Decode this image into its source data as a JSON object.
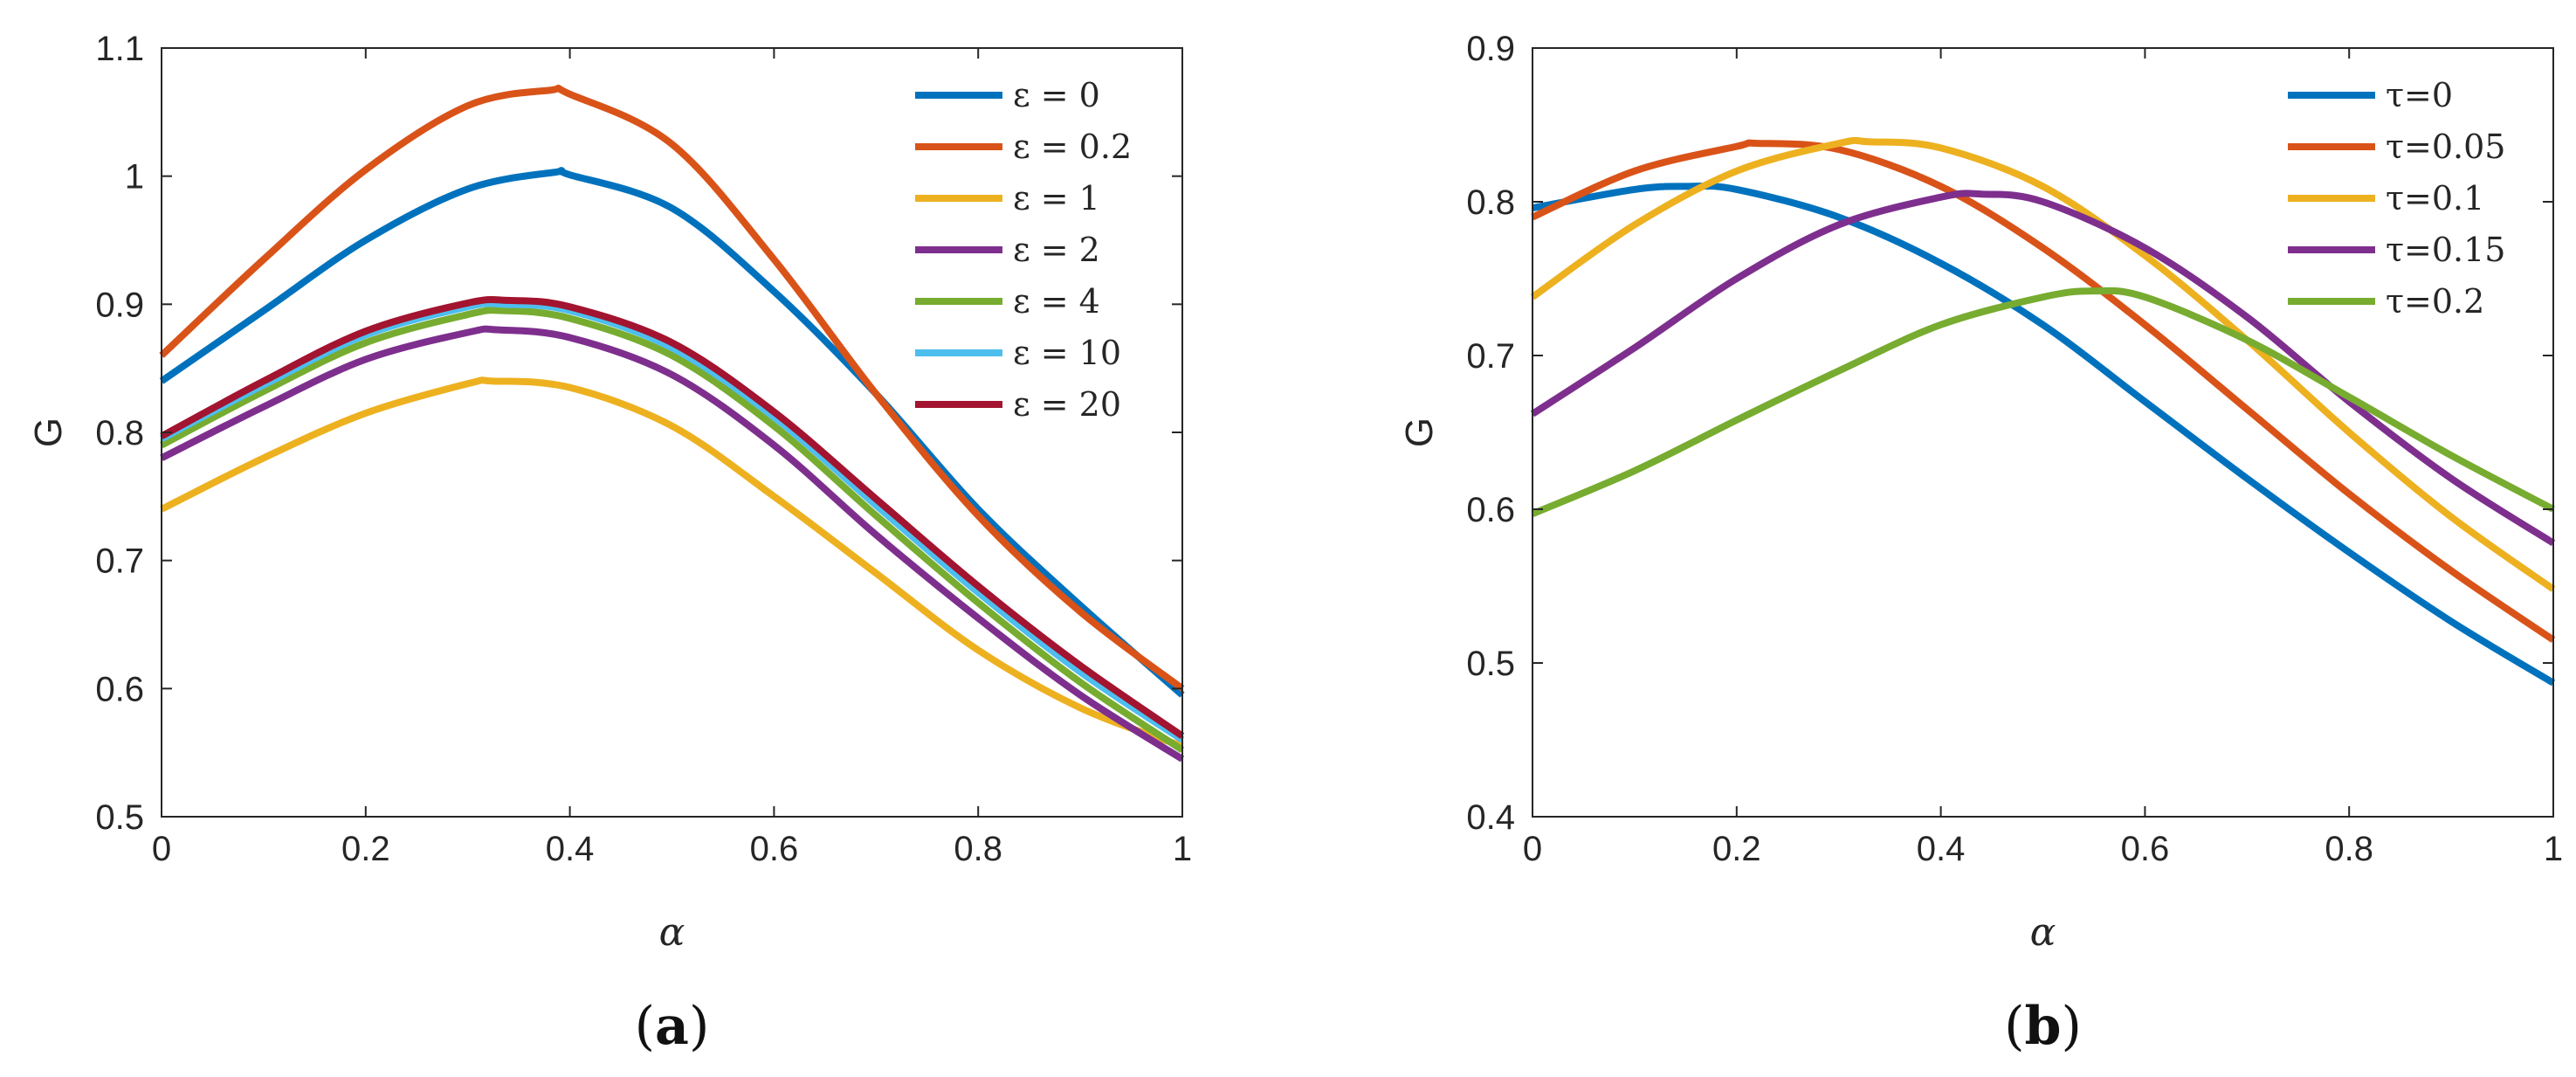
{
  "chart_data": [
    {
      "type": "line",
      "panel_label": "(a)",
      "panel_letter": "a",
      "xlabel": "α",
      "ylabel": "G",
      "xlim": [
        0,
        1
      ],
      "ylim": [
        0.5,
        1.1
      ],
      "x_ticks": [
        0,
        0.2,
        0.4,
        0.6,
        0.8,
        1
      ],
      "x_tick_labels": [
        "0",
        "0.2",
        "0.4",
        "0.6",
        "0.8",
        "1"
      ],
      "y_ticks": [
        0.5,
        0.6,
        0.7,
        0.8,
        0.9,
        1.0,
        1.1
      ],
      "y_tick_labels": [
        "0.5",
        "0.6",
        "0.7",
        "0.8",
        "0.9",
        "1",
        "1.1"
      ],
      "grid": false,
      "legend_position": "top-right",
      "x": [
        0,
        0.1,
        0.2,
        0.3,
        0.4,
        0.5,
        0.6,
        0.7,
        0.8,
        0.9,
        1.0
      ],
      "series": [
        {
          "name": "ε = 0",
          "color": "#0072BD",
          "peak": [
            0.385,
            1.003
          ],
          "values": [
            0.84,
            0.895,
            0.95,
            0.99,
            1.001,
            0.975,
            0.91,
            0.83,
            0.74,
            0.665,
            0.595
          ]
        },
        {
          "name": "ε = 0.2",
          "color": "#D95319",
          "peak": [
            0.38,
            1.067
          ],
          "values": [
            0.86,
            0.935,
            1.005,
            1.055,
            1.064,
            1.025,
            0.935,
            0.83,
            0.735,
            0.66,
            0.6
          ]
        },
        {
          "name": "ε = 1",
          "color": "#EDB120",
          "peak": [
            0.325,
            0.84
          ],
          "values": [
            0.74,
            0.78,
            0.815,
            0.838,
            0.835,
            0.805,
            0.75,
            0.69,
            0.63,
            0.585,
            0.555
          ]
        },
        {
          "name": "ε = 2",
          "color": "#7E2F8E",
          "peak": [
            0.33,
            0.88
          ],
          "values": [
            0.78,
            0.82,
            0.857,
            0.878,
            0.874,
            0.845,
            0.79,
            0.72,
            0.655,
            0.595,
            0.545
          ]
        },
        {
          "name": "ε = 4",
          "color": "#77AC30",
          "peak": [
            0.335,
            0.895
          ],
          "values": [
            0.79,
            0.832,
            0.87,
            0.892,
            0.889,
            0.86,
            0.805,
            0.735,
            0.667,
            0.605,
            0.552
          ]
        },
        {
          "name": "ε = 10",
          "color": "#4DBEEE",
          "peak": [
            0.335,
            0.9
          ],
          "values": [
            0.795,
            0.837,
            0.876,
            0.898,
            0.895,
            0.866,
            0.812,
            0.743,
            0.675,
            0.613,
            0.56
          ]
        },
        {
          "name": "ε = 20",
          "color": "#A2142F",
          "peak": [
            0.34,
            0.903
          ],
          "values": [
            0.797,
            0.84,
            0.879,
            0.901,
            0.898,
            0.87,
            0.816,
            0.748,
            0.68,
            0.618,
            0.563
          ]
        }
      ]
    },
    {
      "type": "line",
      "panel_label": "(b)",
      "panel_letter": "b",
      "xlabel": "α",
      "ylabel": "G",
      "xlim": [
        0,
        1
      ],
      "ylim": [
        0.4,
        0.9
      ],
      "x_ticks": [
        0,
        0.2,
        0.4,
        0.6,
        0.8,
        1
      ],
      "x_tick_labels": [
        "0",
        "0.2",
        "0.4",
        "0.6",
        "0.8",
        "1"
      ],
      "y_ticks": [
        0.4,
        0.5,
        0.6,
        0.7,
        0.8,
        0.9
      ],
      "y_tick_labels": [
        "0.4",
        "0.5",
        "0.6",
        "0.7",
        "0.8",
        "0.9"
      ],
      "grid": false,
      "legend_position": "top-right",
      "x": [
        0,
        0.1,
        0.2,
        0.3,
        0.4,
        0.5,
        0.6,
        0.7,
        0.8,
        0.9,
        1.0
      ],
      "series": [
        {
          "name": "τ=0",
          "color": "#0072BD",
          "peak": [
            0.15,
            0.81
          ],
          "values": [
            0.796,
            0.808,
            0.808,
            0.79,
            0.76,
            0.72,
            0.67,
            0.62,
            0.572,
            0.527,
            0.487
          ]
        },
        {
          "name": "τ=0.05",
          "color": "#D95319",
          "peak": [
            0.22,
            0.838
          ],
          "values": [
            0.79,
            0.82,
            0.836,
            0.834,
            0.81,
            0.77,
            0.72,
            0.665,
            0.61,
            0.56,
            0.515
          ]
        },
        {
          "name": "τ=0.1",
          "color": "#EDB120",
          "peak": [
            0.33,
            0.839
          ],
          "values": [
            0.738,
            0.785,
            0.82,
            0.838,
            0.835,
            0.81,
            0.765,
            0.71,
            0.65,
            0.595,
            0.548
          ]
        },
        {
          "name": "τ=0.15",
          "color": "#7E2F8E",
          "peak": [
            0.44,
            0.805
          ],
          "values": [
            0.662,
            0.705,
            0.75,
            0.785,
            0.803,
            0.8,
            0.77,
            0.725,
            0.67,
            0.62,
            0.578
          ]
        },
        {
          "name": "τ=0.2",
          "color": "#77AC30",
          "peak": [
            0.55,
            0.742
          ],
          "values": [
            0.597,
            0.625,
            0.658,
            0.69,
            0.72,
            0.738,
            0.738,
            0.71,
            0.673,
            0.635,
            0.6
          ]
        }
      ]
    }
  ]
}
